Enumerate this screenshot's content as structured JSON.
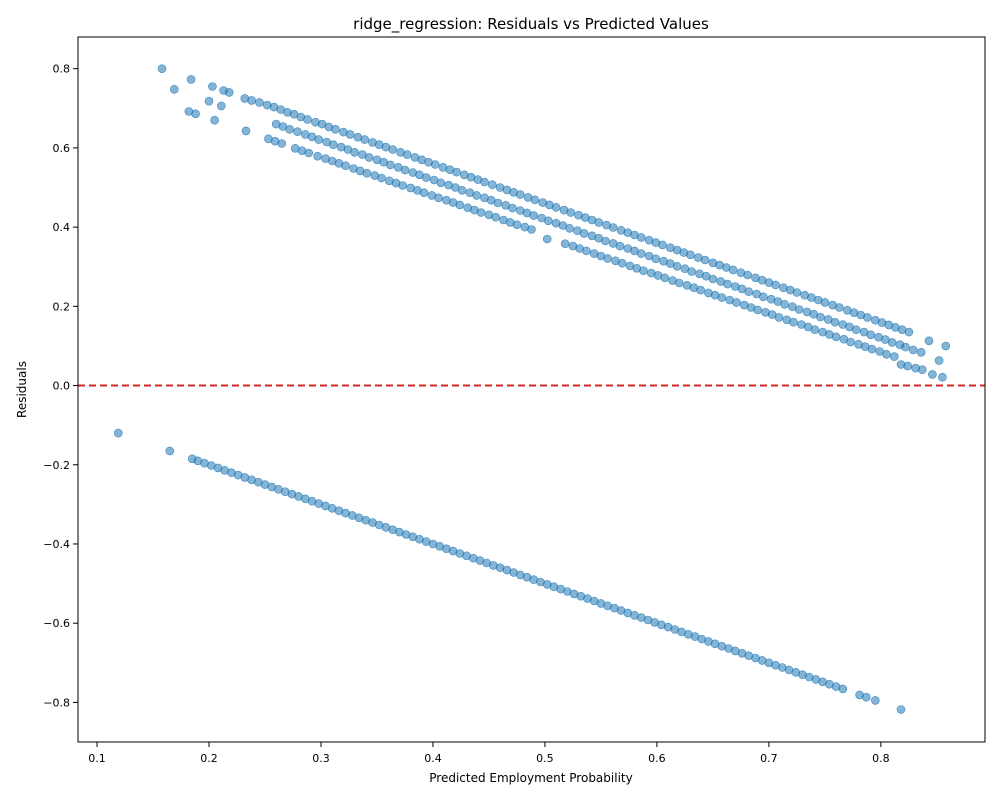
{
  "chart_data": {
    "type": "scatter",
    "title": "ridge_regression: Residuals vs Predicted Values",
    "xlabel": "Predicted Employment Probability",
    "ylabel": "Residuals",
    "xlim": [
      0.083,
      0.893
    ],
    "ylim": [
      -0.9,
      0.88
    ],
    "x_ticks": [
      0.1,
      0.2,
      0.3,
      0.4,
      0.5,
      0.6,
      0.7,
      0.8
    ],
    "x_tick_labels": [
      "0.1",
      "0.2",
      "0.3",
      "0.4",
      "0.5",
      "0.6",
      "0.7",
      "0.8"
    ],
    "y_ticks": [
      -0.8,
      -0.6,
      -0.4,
      -0.2,
      0.0,
      0.2,
      0.4,
      0.6,
      0.8
    ],
    "y_tick_labels": [
      "−0.8",
      "−0.6",
      "−0.4",
      "−0.2",
      "0.0",
      "0.2",
      "0.4",
      "0.6",
      "0.8"
    ],
    "grid": false,
    "legend": "none",
    "marker_color": "#1f77b4",
    "marker_alpha": 0.55,
    "reference_line": {
      "y": 0.0,
      "style": "dashed",
      "color": "#d62728"
    },
    "series": [
      {
        "x": [
          0.158,
          0.169,
          0.184,
          0.203,
          0.213,
          0.218,
          0.232,
          0.238,
          0.245,
          0.252,
          0.258,
          0.264,
          0.27,
          0.276,
          0.282,
          0.288,
          0.295,
          0.301,
          0.307,
          0.313,
          0.32,
          0.326,
          0.333,
          0.339,
          0.346,
          0.352,
          0.358,
          0.364,
          0.371,
          0.377,
          0.384,
          0.39,
          0.396,
          0.402,
          0.409,
          0.415,
          0.421,
          0.428,
          0.434,
          0.44,
          0.446,
          0.453,
          0.46,
          0.466,
          0.472,
          0.478,
          0.485,
          0.491,
          0.498,
          0.504,
          0.51,
          0.517,
          0.523,
          0.53,
          0.536,
          0.542,
          0.548,
          0.555,
          0.561,
          0.568,
          0.574,
          0.58,
          0.586,
          0.593,
          0.599,
          0.605,
          0.612,
          0.618,
          0.624,
          0.63,
          0.637,
          0.643,
          0.65,
          0.656,
          0.662,
          0.668,
          0.675,
          0.681,
          0.688,
          0.694,
          0.7,
          0.706,
          0.713,
          0.719,
          0.725,
          0.732,
          0.738,
          0.744,
          0.75,
          0.757,
          0.763,
          0.77,
          0.776,
          0.782,
          0.788,
          0.795,
          0.801,
          0.807,
          0.813,
          0.819,
          0.825
        ],
        "y": [
          0.8,
          0.748,
          0.773,
          0.755,
          0.745,
          0.74,
          0.725,
          0.72,
          0.715,
          0.708,
          0.703,
          0.697,
          0.69,
          0.685,
          0.678,
          0.672,
          0.665,
          0.66,
          0.653,
          0.647,
          0.64,
          0.634,
          0.627,
          0.621,
          0.614,
          0.608,
          0.602,
          0.596,
          0.589,
          0.583,
          0.576,
          0.57,
          0.564,
          0.558,
          0.551,
          0.545,
          0.539,
          0.532,
          0.526,
          0.52,
          0.514,
          0.507,
          0.5,
          0.494,
          0.488,
          0.482,
          0.475,
          0.469,
          0.462,
          0.456,
          0.45,
          0.443,
          0.437,
          0.43,
          0.424,
          0.418,
          0.412,
          0.405,
          0.399,
          0.392,
          0.386,
          0.38,
          0.374,
          0.367,
          0.361,
          0.355,
          0.348,
          0.342,
          0.336,
          0.33,
          0.323,
          0.317,
          0.31,
          0.304,
          0.298,
          0.292,
          0.285,
          0.279,
          0.272,
          0.266,
          0.26,
          0.254,
          0.247,
          0.241,
          0.235,
          0.228,
          0.222,
          0.216,
          0.21,
          0.203,
          0.197,
          0.19,
          0.184,
          0.178,
          0.172,
          0.165,
          0.159,
          0.153,
          0.147,
          0.141,
          0.135
        ]
      },
      {
        "x": [
          0.182,
          0.188,
          0.2,
          0.211,
          0.26,
          0.266,
          0.272,
          0.279,
          0.286,
          0.292,
          0.298,
          0.305,
          0.311,
          0.318,
          0.324,
          0.33,
          0.337,
          0.343,
          0.35,
          0.356,
          0.362,
          0.369,
          0.375,
          0.382,
          0.388,
          0.394,
          0.401,
          0.407,
          0.414,
          0.42,
          0.426,
          0.433,
          0.439,
          0.446,
          0.452,
          0.458,
          0.465,
          0.471,
          0.478,
          0.484,
          0.49,
          0.497,
          0.503,
          0.51,
          0.516,
          0.522,
          0.529,
          0.535,
          0.542,
          0.548,
          0.554,
          0.561,
          0.567,
          0.574,
          0.58,
          0.586,
          0.593,
          0.599,
          0.606,
          0.612,
          0.618,
          0.625,
          0.631,
          0.638,
          0.644,
          0.65,
          0.657,
          0.663,
          0.67,
          0.676,
          0.682,
          0.689,
          0.695,
          0.702,
          0.708,
          0.714,
          0.721,
          0.727,
          0.734,
          0.74,
          0.746,
          0.753,
          0.759,
          0.766,
          0.772,
          0.778,
          0.785,
          0.791,
          0.798,
          0.804,
          0.81,
          0.817,
          0.822,
          0.829,
          0.836,
          0.843,
          0.858
        ],
        "y": [
          0.692,
          0.686,
          0.718,
          0.706,
          0.66,
          0.654,
          0.647,
          0.641,
          0.634,
          0.628,
          0.621,
          0.615,
          0.608,
          0.602,
          0.596,
          0.589,
          0.583,
          0.576,
          0.57,
          0.564,
          0.557,
          0.551,
          0.544,
          0.538,
          0.532,
          0.525,
          0.519,
          0.512,
          0.506,
          0.5,
          0.493,
          0.487,
          0.48,
          0.474,
          0.468,
          0.461,
          0.455,
          0.448,
          0.442,
          0.436,
          0.429,
          0.423,
          0.416,
          0.41,
          0.404,
          0.397,
          0.391,
          0.384,
          0.378,
          0.372,
          0.365,
          0.359,
          0.352,
          0.346,
          0.34,
          0.333,
          0.327,
          0.32,
          0.314,
          0.308,
          0.301,
          0.295,
          0.288,
          0.282,
          0.276,
          0.269,
          0.263,
          0.256,
          0.25,
          0.244,
          0.237,
          0.231,
          0.224,
          0.218,
          0.212,
          0.205,
          0.199,
          0.192,
          0.186,
          0.18,
          0.173,
          0.167,
          0.16,
          0.154,
          0.148,
          0.141,
          0.135,
          0.128,
          0.122,
          0.116,
          0.109,
          0.103,
          0.097,
          0.09,
          0.084,
          0.113,
          0.1
        ]
      },
      {
        "x": [
          0.205,
          0.233,
          0.253,
          0.259,
          0.265,
          0.277,
          0.283,
          0.289,
          0.297,
          0.304,
          0.31,
          0.316,
          0.322,
          0.329,
          0.335,
          0.341,
          0.348,
          0.354,
          0.361,
          0.367,
          0.373,
          0.38,
          0.386,
          0.392,
          0.399,
          0.405,
          0.412,
          0.418,
          0.424,
          0.431,
          0.437,
          0.443,
          0.45,
          0.456,
          0.463,
          0.469,
          0.475,
          0.482,
          0.488,
          0.502,
          0.518,
          0.525,
          0.531,
          0.537,
          0.544,
          0.55,
          0.556,
          0.563,
          0.569,
          0.576,
          0.582,
          0.588,
          0.595,
          0.601,
          0.607,
          0.614,
          0.62,
          0.627,
          0.633,
          0.639,
          0.646,
          0.652,
          0.658,
          0.665,
          0.671,
          0.678,
          0.684,
          0.69,
          0.697,
          0.703,
          0.709,
          0.716,
          0.722,
          0.729,
          0.735,
          0.741,
          0.748,
          0.754,
          0.76,
          0.767,
          0.773,
          0.78,
          0.786,
          0.792,
          0.799,
          0.805,
          0.812,
          0.818,
          0.824,
          0.831,
          0.837,
          0.846,
          0.852,
          0.855
        ],
        "y": [
          0.67,
          0.643,
          0.623,
          0.617,
          0.611,
          0.599,
          0.593,
          0.587,
          0.579,
          0.573,
          0.567,
          0.561,
          0.555,
          0.548,
          0.542,
          0.536,
          0.53,
          0.524,
          0.517,
          0.511,
          0.505,
          0.499,
          0.493,
          0.487,
          0.48,
          0.474,
          0.468,
          0.462,
          0.456,
          0.449,
          0.443,
          0.437,
          0.431,
          0.425,
          0.418,
          0.412,
          0.406,
          0.4,
          0.394,
          0.37,
          0.358,
          0.352,
          0.346,
          0.34,
          0.333,
          0.327,
          0.321,
          0.315,
          0.309,
          0.302,
          0.296,
          0.29,
          0.284,
          0.278,
          0.272,
          0.265,
          0.259,
          0.253,
          0.247,
          0.241,
          0.234,
          0.228,
          0.222,
          0.216,
          0.21,
          0.203,
          0.197,
          0.191,
          0.185,
          0.179,
          0.172,
          0.166,
          0.16,
          0.154,
          0.148,
          0.141,
          0.135,
          0.129,
          0.123,
          0.117,
          0.11,
          0.104,
          0.098,
          0.092,
          0.086,
          0.079,
          0.073,
          0.053,
          0.049,
          0.044,
          0.04,
          0.028,
          0.063,
          0.021
        ]
      },
      {
        "x": [
          0.119,
          0.165,
          0.185,
          0.19,
          0.196,
          0.202,
          0.208,
          0.214,
          0.22,
          0.226,
          0.232,
          0.238,
          0.244,
          0.25,
          0.256,
          0.262,
          0.268,
          0.274,
          0.28,
          0.286,
          0.292,
          0.298,
          0.304,
          0.31,
          0.316,
          0.322,
          0.328,
          0.334,
          0.34,
          0.346,
          0.352,
          0.358,
          0.364,
          0.37,
          0.376,
          0.382,
          0.388,
          0.394,
          0.4,
          0.406,
          0.412,
          0.418,
          0.424,
          0.43,
          0.436,
          0.442,
          0.448,
          0.454,
          0.46,
          0.466,
          0.472,
          0.478,
          0.484,
          0.49,
          0.496,
          0.502,
          0.508,
          0.514,
          0.52,
          0.526,
          0.532,
          0.538,
          0.544,
          0.55,
          0.556,
          0.562,
          0.568,
          0.574,
          0.58,
          0.586,
          0.592,
          0.598,
          0.604,
          0.61,
          0.616,
          0.622,
          0.628,
          0.634,
          0.64,
          0.646,
          0.652,
          0.658,
          0.664,
          0.67,
          0.676,
          0.682,
          0.688,
          0.694,
          0.7,
          0.706,
          0.712,
          0.718,
          0.724,
          0.73,
          0.736,
          0.742,
          0.748,
          0.754,
          0.76,
          0.766,
          0.781,
          0.787,
          0.795,
          0.818
        ],
        "y": [
          -0.12,
          -0.165,
          -0.185,
          -0.19,
          -0.196,
          -0.202,
          -0.208,
          -0.214,
          -0.22,
          -0.226,
          -0.232,
          -0.238,
          -0.244,
          -0.25,
          -0.256,
          -0.262,
          -0.268,
          -0.274,
          -0.28,
          -0.286,
          -0.292,
          -0.298,
          -0.304,
          -0.31,
          -0.316,
          -0.322,
          -0.328,
          -0.334,
          -0.34,
          -0.346,
          -0.352,
          -0.358,
          -0.364,
          -0.37,
          -0.376,
          -0.382,
          -0.388,
          -0.394,
          -0.4,
          -0.406,
          -0.412,
          -0.418,
          -0.424,
          -0.43,
          -0.436,
          -0.442,
          -0.448,
          -0.454,
          -0.46,
          -0.466,
          -0.472,
          -0.478,
          -0.484,
          -0.49,
          -0.496,
          -0.502,
          -0.508,
          -0.514,
          -0.52,
          -0.526,
          -0.532,
          -0.538,
          -0.544,
          -0.55,
          -0.556,
          -0.562,
          -0.568,
          -0.574,
          -0.58,
          -0.586,
          -0.592,
          -0.598,
          -0.604,
          -0.61,
          -0.616,
          -0.622,
          -0.628,
          -0.634,
          -0.64,
          -0.646,
          -0.652,
          -0.658,
          -0.664,
          -0.67,
          -0.676,
          -0.682,
          -0.688,
          -0.694,
          -0.7,
          -0.706,
          -0.712,
          -0.718,
          -0.724,
          -0.73,
          -0.736,
          -0.742,
          -0.748,
          -0.754,
          -0.76,
          -0.766,
          -0.781,
          -0.787,
          -0.795,
          -0.818
        ]
      }
    ]
  }
}
